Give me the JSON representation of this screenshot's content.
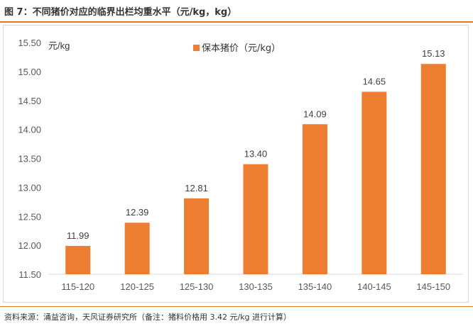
{
  "figure_title": "图 7：不同猪价对应的临界出栏均重水平（元/kg，kg）",
  "source_note": "资料来源：涌益咨询，天风证券研究所（备注：猪料价格用 3.42 元/kg 进行计算）",
  "chart_data": {
    "type": "bar",
    "title": "",
    "xlabel": "",
    "ylabel": "元/kg",
    "categories": [
      "115-120",
      "120-125",
      "125-130",
      "130-135",
      "135-140",
      "140-145",
      "145-150"
    ],
    "series": [
      {
        "name": "保本猪价（元/kg）",
        "values": [
          11.99,
          12.39,
          12.81,
          13.4,
          14.09,
          14.65,
          15.13
        ]
      }
    ],
    "data_labels": [
      "11.99",
      "12.39",
      "12.81",
      "13.40",
      "14.09",
      "14.65",
      "15.13"
    ],
    "ylim": [
      11.5,
      15.5
    ],
    "yticks": [
      "11.50",
      "12.00",
      "12.50",
      "13.00",
      "13.50",
      "14.00",
      "14.50",
      "15.00",
      "15.50"
    ],
    "grid": false,
    "legend_position": "top-center",
    "bar_color": "#ed7d31"
  }
}
